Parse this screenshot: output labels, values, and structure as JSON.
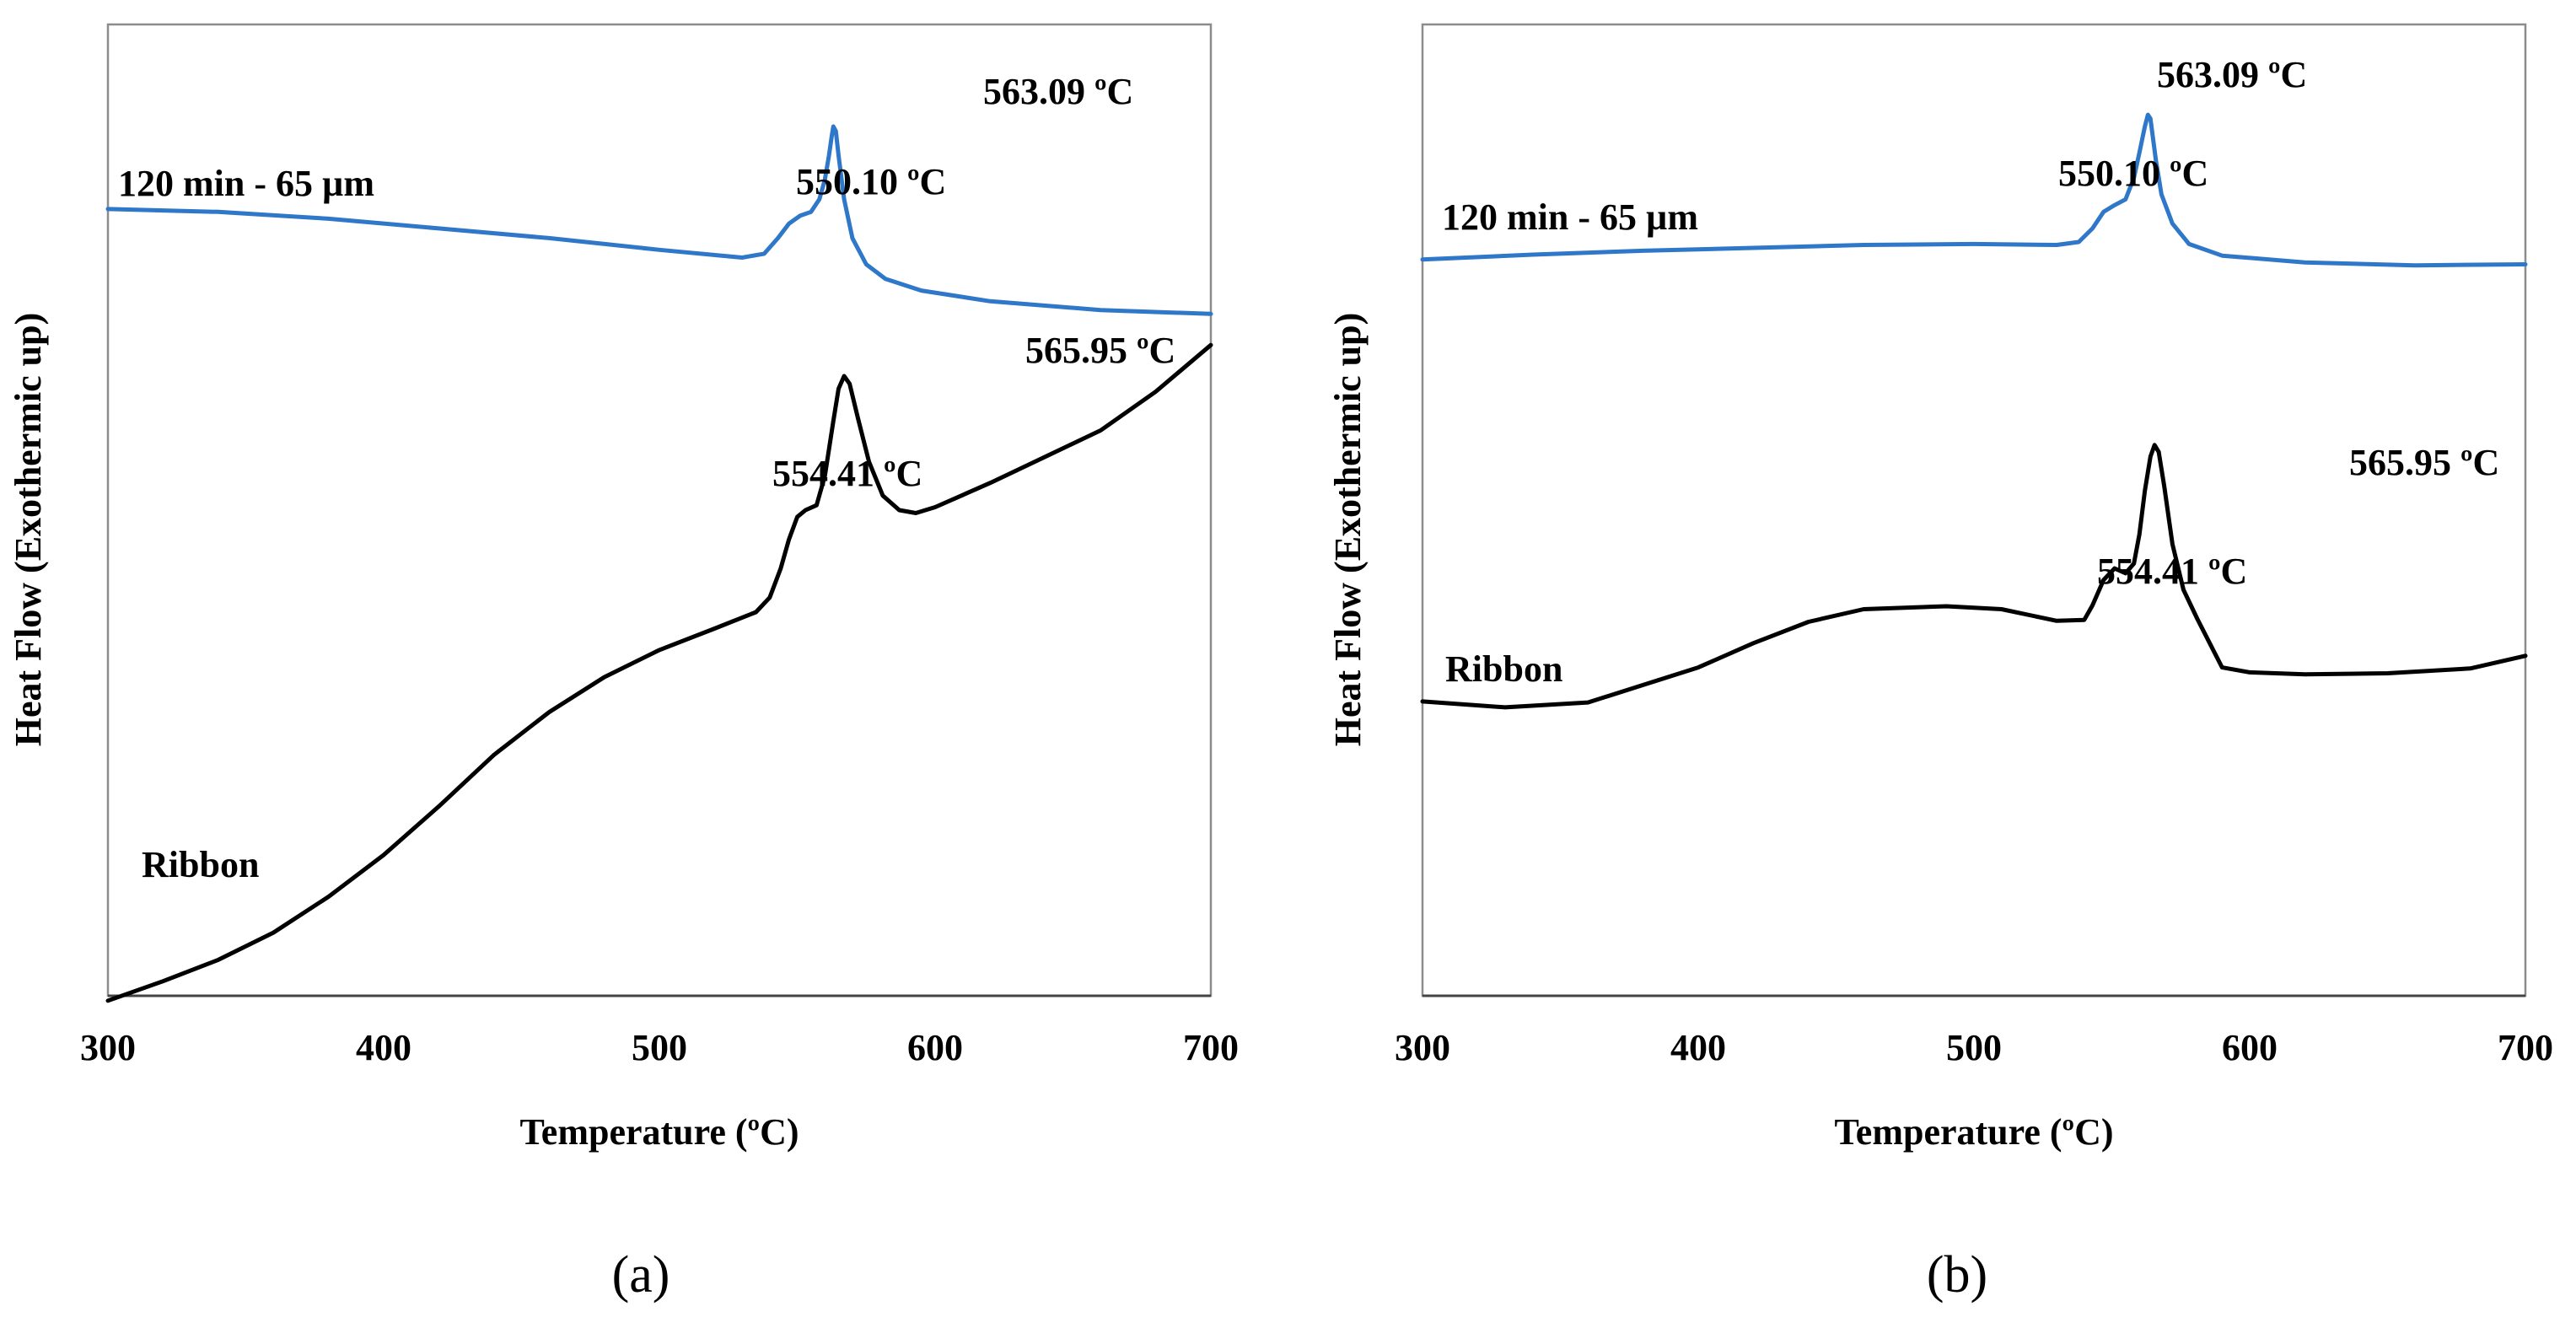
{
  "chart_data": [
    {
      "type": "line",
      "panel_caption": "(a)",
      "xlabel": "Temperature (ºC)",
      "ylabel": "Heat  Flow (Exothermic up)",
      "xlim": [
        300,
        700
      ],
      "ylim": [
        0,
        100
      ],
      "x_ticks": [
        "300",
        "400",
        "500",
        "600",
        "700"
      ],
      "grid": false,
      "series": [
        {
          "name": "120 min - 65 µm",
          "color": "#2f77c8",
          "points": [
            [
              300,
              81
            ],
            [
              340,
              80.7
            ],
            [
              380,
              80
            ],
            [
              420,
              79
            ],
            [
              460,
              78
            ],
            [
              500,
              76.8
            ],
            [
              530,
              76
            ],
            [
              538,
              76.4
            ],
            [
              543,
              78
            ],
            [
              547,
              79.5
            ],
            [
              551,
              80.3
            ],
            [
              555,
              80.7
            ],
            [
              558,
              82
            ],
            [
              560,
              84
            ],
            [
              561.5,
              86.5
            ],
            [
              562.5,
              88.5
            ],
            [
              563.1,
              89.5
            ],
            [
              564,
              89
            ],
            [
              565,
              86.5
            ],
            [
              567,
              82
            ],
            [
              570,
              78
            ],
            [
              575,
              75.3
            ],
            [
              582,
              73.8
            ],
            [
              595,
              72.6
            ],
            [
              620,
              71.5
            ],
            [
              660,
              70.6
            ],
            [
              700,
              70.2
            ]
          ],
          "annotations": [
            {
              "x": 550.1,
              "text": "550.10 ºC"
            },
            {
              "x": 563.09,
              "text": "563.09 ºC"
            }
          ]
        },
        {
          "name": "Ribbon",
          "color": "#000000",
          "points": [
            [
              300,
              -0.5
            ],
            [
              320,
              1.5
            ],
            [
              340,
              3.7
            ],
            [
              360,
              6.5
            ],
            [
              380,
              10.2
            ],
            [
              400,
              14.5
            ],
            [
              420,
              19.5
            ],
            [
              440,
              24.8
            ],
            [
              460,
              29.2
            ],
            [
              480,
              32.8
            ],
            [
              500,
              35.6
            ],
            [
              520,
              37.8
            ],
            [
              535,
              39.5
            ],
            [
              540,
              41
            ],
            [
              544,
              44
            ],
            [
              547,
              47
            ],
            [
              550,
              49.3
            ],
            [
              553,
              50
            ],
            [
              557,
              50.5
            ],
            [
              560,
              53.5
            ],
            [
              563,
              59
            ],
            [
              565,
              62.5
            ],
            [
              567,
              63.8
            ],
            [
              569,
              63
            ],
            [
              572,
              59.5
            ],
            [
              576,
              55
            ],
            [
              581,
              51.5
            ],
            [
              587,
              50
            ],
            [
              593,
              49.7
            ],
            [
              600,
              50.3
            ],
            [
              620,
              52.8
            ],
            [
              640,
              55.5
            ],
            [
              660,
              58.2
            ],
            [
              680,
              62.2
            ],
            [
              700,
              67
            ]
          ],
          "annotations": [
            {
              "x": 554.41,
              "text": "554.41 ºC"
            },
            {
              "x": 565.95,
              "text": "565.95 ºC"
            }
          ]
        }
      ]
    },
    {
      "type": "line",
      "panel_caption": "(b)",
      "xlabel": "Temperature (ºC)",
      "ylabel": "Heat  Flow (Exothermic up)",
      "xlim": [
        300,
        700
      ],
      "ylim": [
        0,
        100
      ],
      "x_ticks": [
        "300",
        "400",
        "500",
        "600",
        "700"
      ],
      "grid": false,
      "series": [
        {
          "name": "120 min - 65 µm",
          "color": "#2f77c8",
          "points": [
            [
              300,
              75.8
            ],
            [
              340,
              76.3
            ],
            [
              380,
              76.7
            ],
            [
              420,
              77
            ],
            [
              460,
              77.3
            ],
            [
              500,
              77.4
            ],
            [
              530,
              77.3
            ],
            [
              538,
              77.6
            ],
            [
              543,
              79
            ],
            [
              547,
              80.7
            ],
            [
              551,
              81.4
            ],
            [
              555,
              82
            ],
            [
              558,
              84.2
            ],
            [
              560,
              86.8
            ],
            [
              562,
              89.5
            ],
            [
              563.1,
              90.7
            ],
            [
              564,
              90.3
            ],
            [
              566,
              86
            ],
            [
              568,
              82.5
            ],
            [
              572,
              79.5
            ],
            [
              578,
              77.4
            ],
            [
              590,
              76.2
            ],
            [
              620,
              75.5
            ],
            [
              660,
              75.2
            ],
            [
              700,
              75.3
            ]
          ],
          "annotations": [
            {
              "x": 550.1,
              "text": "550.10 ºC"
            },
            {
              "x": 563.09,
              "text": "563.09 ºC"
            }
          ]
        },
        {
          "name": "Ribbon",
          "color": "#000000",
          "points": [
            [
              300,
              30.3
            ],
            [
              330,
              29.7
            ],
            [
              360,
              30.2
            ],
            [
              380,
              32
            ],
            [
              400,
              33.8
            ],
            [
              420,
              36.3
            ],
            [
              440,
              38.5
            ],
            [
              460,
              39.8
            ],
            [
              490,
              40.1
            ],
            [
              510,
              39.8
            ],
            [
              530,
              38.6
            ],
            [
              540,
              38.7
            ],
            [
              543,
              40.2
            ],
            [
              547,
              42.8
            ],
            [
              551,
              44
            ],
            [
              555,
              43.5
            ],
            [
              558,
              44.5
            ],
            [
              560,
              47.5
            ],
            [
              562,
              52
            ],
            [
              564,
              55.5
            ],
            [
              565.5,
              56.7
            ],
            [
              567,
              56
            ],
            [
              569,
              52.5
            ],
            [
              572,
              46.5
            ],
            [
              576,
              41.8
            ],
            [
              581,
              38.8
            ],
            [
              590,
              33.8
            ],
            [
              600,
              33.3
            ],
            [
              620,
              33.1
            ],
            [
              650,
              33.2
            ],
            [
              680,
              33.7
            ],
            [
              700,
              35
            ]
          ],
          "annotations": [
            {
              "x": 554.41,
              "text": "554.41 ºC"
            },
            {
              "x": 565.95,
              "text": "565.95 ºC"
            }
          ]
        }
      ]
    }
  ]
}
